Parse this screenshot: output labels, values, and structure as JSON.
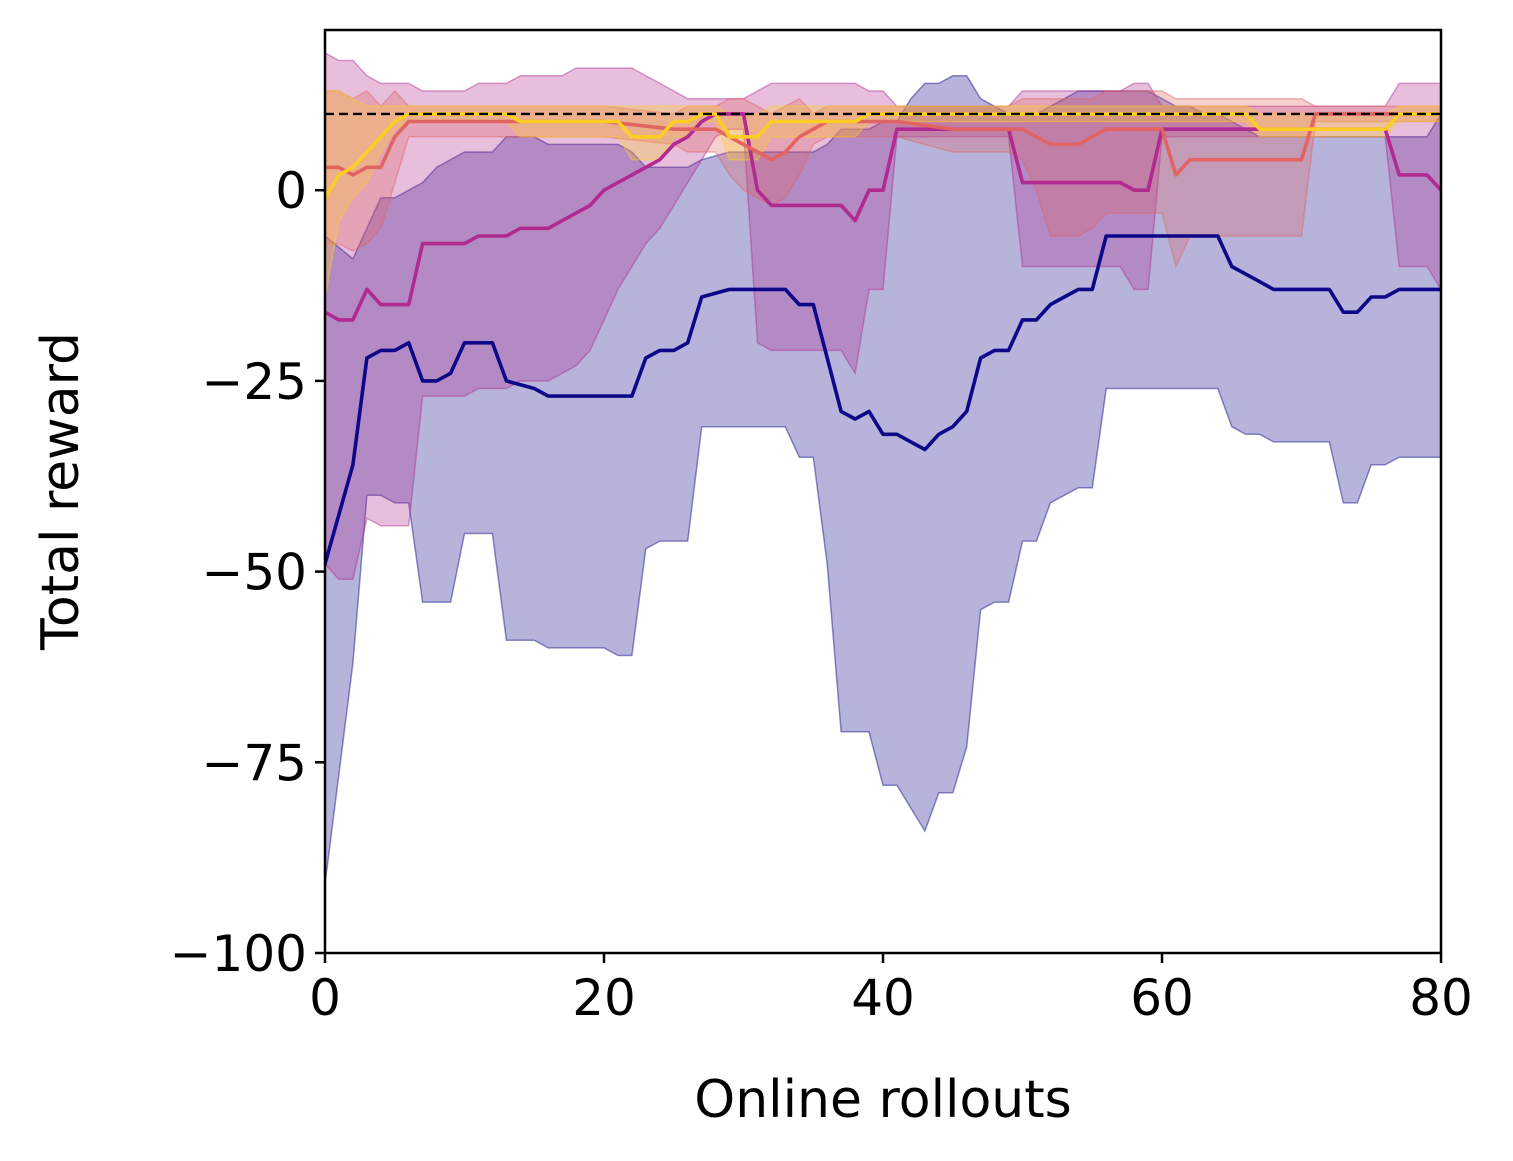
{
  "chart_data": {
    "type": "line",
    "title": "",
    "xlabel": "Online rollouts",
    "ylabel": "Total reward",
    "xlim": [
      0,
      80
    ],
    "ylim": [
      -100,
      21
    ],
    "xticks": [
      0,
      20,
      40,
      60,
      80
    ],
    "xtick_labels": [
      "0",
      "20",
      "40",
      "60",
      "80"
    ],
    "yticks": [
      0,
      -25,
      -50,
      -75,
      -100
    ],
    "ytick_labels": [
      "0",
      "−25",
      "−50",
      "−75",
      "−100"
    ],
    "grid": false,
    "legend": "none",
    "reference_line": {
      "y": 10,
      "style": "dashed",
      "color": "#000000"
    },
    "series": [
      {
        "color": "#0d0887",
        "x": [
          0,
          2,
          3,
          4,
          5,
          6,
          7,
          8,
          9,
          10,
          11,
          12,
          13,
          15,
          16,
          17,
          18,
          19,
          20,
          21,
          22,
          23,
          24,
          25,
          26,
          27,
          29,
          31,
          32,
          33,
          34,
          35,
          36,
          37,
          38,
          39,
          40,
          41,
          42,
          43,
          44,
          45,
          46,
          47,
          48,
          49,
          50,
          51,
          52,
          53,
          54,
          55,
          56,
          57,
          58,
          59,
          60,
          61,
          62,
          63,
          64,
          65,
          66,
          67,
          68,
          69,
          70,
          71,
          72,
          73,
          74,
          75,
          76,
          77,
          78,
          79,
          80
        ],
        "mean": [
          -49,
          -36,
          -22,
          -21,
          -21,
          -20,
          -25,
          -25,
          -24,
          -20,
          -20,
          -20,
          -25,
          -26,
          -27,
          -27,
          -27,
          -27,
          -27,
          -27,
          -27,
          -22,
          -21,
          -21,
          -20,
          -14,
          -13,
          -13,
          -13,
          -13,
          -15,
          -15,
          -22,
          -29,
          -30,
          -29,
          -32,
          -32,
          -33,
          -34,
          -32,
          -31,
          -29,
          -22,
          -21,
          -21,
          -17,
          -17,
          -15,
          -14,
          -13,
          -13,
          -6,
          -6,
          -6,
          -6,
          -6,
          -6,
          -6,
          -6,
          -6,
          -10,
          -11,
          -12,
          -13,
          -13,
          -13,
          -13,
          -13,
          -16,
          -16,
          -14,
          -14,
          -13,
          -13,
          -13,
          -13
        ],
        "lower": [
          -91,
          -62,
          -40,
          -40,
          -41,
          -41,
          -54,
          -54,
          -54,
          -45,
          -45,
          -45,
          -59,
          -59,
          -60,
          -60,
          -60,
          -60,
          -60,
          -61,
          -61,
          -47,
          -46,
          -46,
          -46,
          -31,
          -31,
          -31,
          -31,
          -31,
          -35,
          -35,
          -49,
          -71,
          -71,
          -71,
          -78,
          -78,
          -81,
          -84,
          -79,
          -79,
          -73,
          -55,
          -54,
          -54,
          -46,
          -46,
          -41,
          -40,
          -39,
          -39,
          -26,
          -26,
          -26,
          -26,
          -26,
          -26,
          -26,
          -26,
          -26,
          -31,
          -32,
          -32,
          -33,
          -33,
          -33,
          -33,
          -33,
          -41,
          -41,
          -36,
          -36,
          -35,
          -35,
          -35,
          -35
        ],
        "upper": [
          -6,
          -9,
          -5,
          -1,
          -1,
          0,
          1,
          3,
          4,
          5,
          5,
          5,
          7,
          7,
          6,
          6,
          6,
          6,
          6,
          6,
          5,
          3,
          3,
          3,
          3,
          4,
          5,
          5,
          5,
          5,
          5,
          5,
          6,
          8,
          8,
          8,
          9,
          9,
          12,
          14,
          14,
          15,
          15,
          12,
          11,
          10,
          10,
          10,
          11,
          12,
          13,
          13,
          13,
          13,
          13,
          13,
          12,
          11,
          11,
          10,
          10,
          9,
          8,
          7,
          7,
          7,
          7,
          7,
          7,
          7,
          7,
          7,
          7,
          7,
          7,
          7,
          10
        ]
      },
      {
        "color": "#b12a90",
        "x": [
          0,
          1,
          2,
          3,
          4,
          5,
          6,
          7,
          8,
          9,
          10,
          11,
          12,
          13,
          14,
          15,
          16,
          17,
          18,
          19,
          20,
          21,
          22,
          23,
          24,
          25,
          26,
          27,
          28,
          29,
          30,
          31,
          32,
          33,
          34,
          35,
          36,
          37,
          38,
          39,
          40,
          41,
          45,
          49,
          50,
          51,
          52,
          53,
          54,
          55,
          56,
          57,
          58,
          59,
          60,
          61,
          62,
          63,
          64,
          65,
          66,
          67,
          68,
          69,
          70,
          71,
          72,
          73,
          74,
          75,
          76,
          77,
          78,
          79,
          80
        ],
        "mean": [
          -16,
          -17,
          -17,
          -13,
          -15,
          -15,
          -15,
          -7,
          -7,
          -7,
          -7,
          -6,
          -6,
          -6,
          -5,
          -5,
          -5,
          -4,
          -3,
          -2,
          0,
          1,
          2,
          3,
          4,
          6,
          7,
          9,
          10,
          10,
          10,
          0,
          -2,
          -2,
          -2,
          -2,
          -2,
          -2,
          -4,
          0,
          0,
          8,
          8,
          8,
          1,
          1,
          1,
          1,
          1,
          1,
          1,
          1,
          0,
          0,
          8,
          8,
          8,
          8,
          8,
          8,
          8,
          8,
          8,
          8,
          8,
          8,
          8,
          8,
          8,
          8,
          8,
          2,
          2,
          2,
          0
        ],
        "lower": [
          -49,
          -51,
          -51,
          -43,
          -44,
          -44,
          -44,
          -27,
          -27,
          -27,
          -27,
          -26,
          -26,
          -26,
          -25,
          -25,
          -25,
          -24,
          -23,
          -21,
          -17,
          -13,
          -10,
          -7,
          -5,
          -2,
          1,
          4,
          7,
          8,
          8,
          -20,
          -21,
          -21,
          -21,
          -21,
          -21,
          -21,
          -24,
          -13,
          -13,
          7,
          7,
          7,
          -10,
          -10,
          -10,
          -10,
          -10,
          -10,
          -10,
          -10,
          -13,
          -13,
          7,
          7,
          7,
          7,
          7,
          7,
          7,
          7,
          7,
          7,
          7,
          7,
          7,
          7,
          7,
          7,
          7,
          -10,
          -10,
          -10,
          -13
        ],
        "upper": [
          18,
          17,
          17,
          15,
          14,
          14,
          14,
          13,
          13,
          13,
          13,
          14,
          14,
          14,
          15,
          15,
          15,
          15,
          16,
          16,
          16,
          16,
          16,
          15,
          14,
          13,
          12,
          12,
          12,
          12,
          12,
          13,
          14,
          14,
          14,
          14,
          14,
          14,
          14,
          13,
          13,
          11,
          11,
          11,
          13,
          13,
          13,
          13,
          13,
          13,
          13,
          13,
          14,
          14,
          11,
          11,
          11,
          11,
          11,
          11,
          11,
          11,
          11,
          11,
          11,
          11,
          11,
          11,
          11,
          11,
          11,
          14,
          14,
          14,
          14
        ]
      },
      {
        "color": "#e16462",
        "x": [
          0,
          1,
          2,
          3,
          4,
          5,
          6,
          7,
          8,
          9,
          10,
          11,
          12,
          13,
          14,
          15,
          20,
          25,
          26,
          27,
          28,
          29,
          30,
          31,
          32,
          33,
          34,
          35,
          36,
          37,
          38,
          39,
          40,
          41,
          45,
          49,
          50,
          51,
          52,
          53,
          54,
          55,
          56,
          57,
          58,
          59,
          60,
          61,
          62,
          63,
          64,
          65,
          66,
          67,
          68,
          69,
          70,
          71,
          72,
          73,
          74,
          75,
          76,
          77,
          78,
          79,
          80
        ],
        "mean": [
          3,
          3,
          2,
          3,
          3,
          7,
          9,
          9,
          9,
          9,
          9,
          9,
          9,
          9,
          9,
          9,
          9,
          8,
          8,
          8,
          8,
          7,
          6,
          5,
          4,
          5,
          7,
          8,
          9,
          9,
          9,
          9,
          9,
          9,
          8,
          8,
          8,
          7,
          6,
          6,
          6,
          7,
          8,
          8,
          8,
          8,
          8,
          2,
          4,
          4,
          4,
          4,
          4,
          4,
          4,
          4,
          4,
          10,
          10,
          10,
          10,
          10,
          10,
          10,
          10,
          10,
          10
        ],
        "lower": [
          -7,
          -7,
          -8,
          -7,
          -5,
          1,
          7,
          7,
          7,
          7,
          7,
          7,
          7,
          7,
          7,
          7,
          7,
          6,
          5,
          5,
          5,
          2,
          0,
          -1,
          -2,
          -1,
          2,
          6,
          7,
          7,
          7,
          7,
          7,
          7,
          5,
          5,
          4,
          0,
          -6,
          -6,
          -6,
          -5,
          -3,
          -3,
          -3,
          -3,
          -3,
          -10,
          -6,
          -6,
          -6,
          -6,
          -6,
          -6,
          -6,
          -6,
          -6,
          9,
          9,
          9,
          9,
          9,
          9,
          9,
          9,
          9,
          9
        ],
        "upper": [
          13,
          13,
          12,
          13,
          11,
          13,
          11,
          11,
          11,
          11,
          11,
          11,
          11,
          11,
          11,
          11,
          11,
          10,
          11,
          11,
          11,
          12,
          12,
          11,
          10,
          11,
          12,
          10,
          11,
          11,
          11,
          11,
          11,
          11,
          11,
          11,
          12,
          12,
          12,
          12,
          12,
          12,
          13,
          13,
          13,
          13,
          13,
          12,
          12,
          12,
          12,
          12,
          12,
          12,
          12,
          12,
          12,
          11,
          11,
          11,
          11,
          11,
          11,
          11,
          11,
          11,
          11
        ]
      },
      {
        "color": "#fcce25",
        "x": [
          0,
          1,
          2,
          3,
          4,
          5,
          6,
          7,
          8,
          13,
          14,
          15,
          20,
          21,
          22,
          23,
          24,
          25,
          26,
          27,
          28,
          29,
          30,
          31,
          32,
          33,
          36,
          37,
          38,
          39,
          40,
          65,
          66,
          67,
          68,
          69,
          70,
          71,
          72,
          73,
          74,
          75,
          76,
          77,
          78,
          79,
          80
        ],
        "mean": [
          -1,
          2,
          3,
          5,
          7,
          9,
          10,
          10,
          10,
          10,
          9,
          9,
          9,
          9,
          7,
          7,
          7,
          9,
          9,
          10,
          10,
          7,
          7,
          7,
          9,
          9,
          9,
          9,
          9,
          10,
          10,
          10,
          10,
          8,
          8,
          8,
          8,
          8,
          8,
          8,
          8,
          8,
          8,
          10,
          10,
          10,
          10
        ],
        "lower": [
          -14,
          -4,
          -1,
          1,
          5,
          8,
          9,
          9,
          9,
          9,
          7,
          7,
          7,
          7,
          4,
          4,
          4,
          7,
          7,
          9,
          9,
          4,
          4,
          4,
          7,
          7,
          7,
          7,
          7,
          9,
          9,
          9,
          9,
          7,
          7,
          7,
          7,
          7,
          7,
          7,
          7,
          7,
          7,
          9,
          9,
          9,
          9
        ],
        "upper": [
          13,
          13,
          12,
          11,
          11,
          11,
          11,
          11,
          11,
          11,
          11,
          11,
          11,
          11,
          11,
          11,
          11,
          11,
          11,
          11,
          11,
          10,
          10,
          10,
          11,
          11,
          11,
          11,
          11,
          11,
          11,
          11,
          11,
          10,
          10,
          10,
          10,
          10,
          10,
          10,
          10,
          10,
          10,
          11,
          11,
          11,
          11
        ]
      }
    ]
  }
}
